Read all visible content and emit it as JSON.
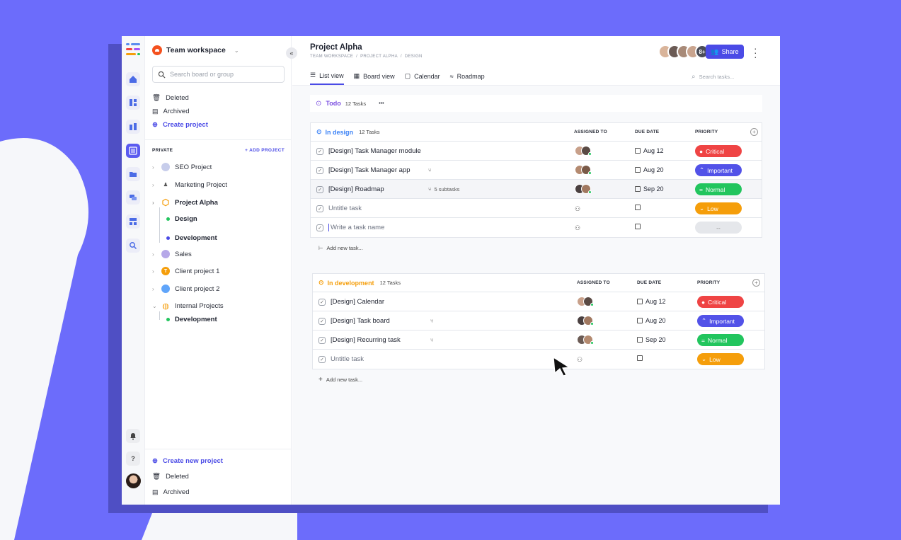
{
  "colors": {
    "background": "#6C6CFB",
    "accent": "#4B4BE6",
    "critical": "#EF4444",
    "important": "#5252E8",
    "normal": "#22C55E",
    "low": "#F59E0B"
  },
  "sidebar": {
    "workspace": "Team workspace",
    "search_placeholder": "Search board or group",
    "top_links": {
      "deleted": "Deleted",
      "archived": "Archived",
      "create": "Create project"
    },
    "private_label": "PRIVATE",
    "add_project": "+ ADD PROJECT",
    "projects": {
      "seo": "SEO Project",
      "marketing": "Marketing Project",
      "alpha": "Project Alpha",
      "alpha_design": "Design",
      "alpha_dev": "Development",
      "sales": "Sales",
      "client1": "Client project 1",
      "client2": "Client project 2",
      "internal": "Internal Projects",
      "internal_dev": "Development"
    },
    "bottom_links": {
      "create": "Create new project",
      "deleted": "Deleted",
      "archived": "Archived"
    }
  },
  "header": {
    "title": "Project Alpha",
    "breadcrumb": [
      "TEAM WORKSPACE",
      "/",
      "PROJECT ALPHA",
      "/",
      "DESIGN"
    ],
    "more_members": "8+",
    "share": "Share",
    "tabs": [
      "List view",
      "Board view",
      "Calendar",
      "Roadmap"
    ],
    "search_placeholder": "Search tasks..."
  },
  "status_bar": {
    "name": "Todo",
    "count": "12 Tasks",
    "more": "•••"
  },
  "columns": {
    "assigned": "ASSIGNED TO",
    "due": "DUE DATE",
    "priority": "PRIORITY"
  },
  "groups": [
    {
      "name": "In design",
      "count": "12 Tasks",
      "add_task": "Add new task...",
      "rows": [
        {
          "name": "[Design] Task Manager module",
          "subtasks": "",
          "due": "Aug 12",
          "priority": "Critical"
        },
        {
          "name": "[Design] Task Manager app",
          "subtasks": "",
          "due": "Aug 20",
          "priority": "Important"
        },
        {
          "name": "[Design] Roadmap",
          "subtasks": "5 subtasks",
          "due": "Sep 20",
          "priority": "Normal"
        },
        {
          "name": "Untitle task",
          "subtasks": "",
          "due": "",
          "priority": "Low"
        },
        {
          "name": "Write a task name",
          "subtasks": "",
          "due": "",
          "priority": "--"
        }
      ]
    },
    {
      "name": "In development",
      "count": "12 Tasks",
      "add_task": "Add new task...",
      "rows": [
        {
          "name": "[Design] Calendar",
          "subtasks": "",
          "due": "Aug 12",
          "priority": "Critical"
        },
        {
          "name": "[Design] Task board",
          "subtasks": "",
          "due": "Aug 20",
          "priority": "Important"
        },
        {
          "name": "[Design] Recurring task",
          "subtasks": "",
          "due": "Sep 20",
          "priority": "Normal"
        },
        {
          "name": "Untitle task",
          "subtasks": "",
          "due": "",
          "priority": "Low"
        }
      ]
    }
  ]
}
